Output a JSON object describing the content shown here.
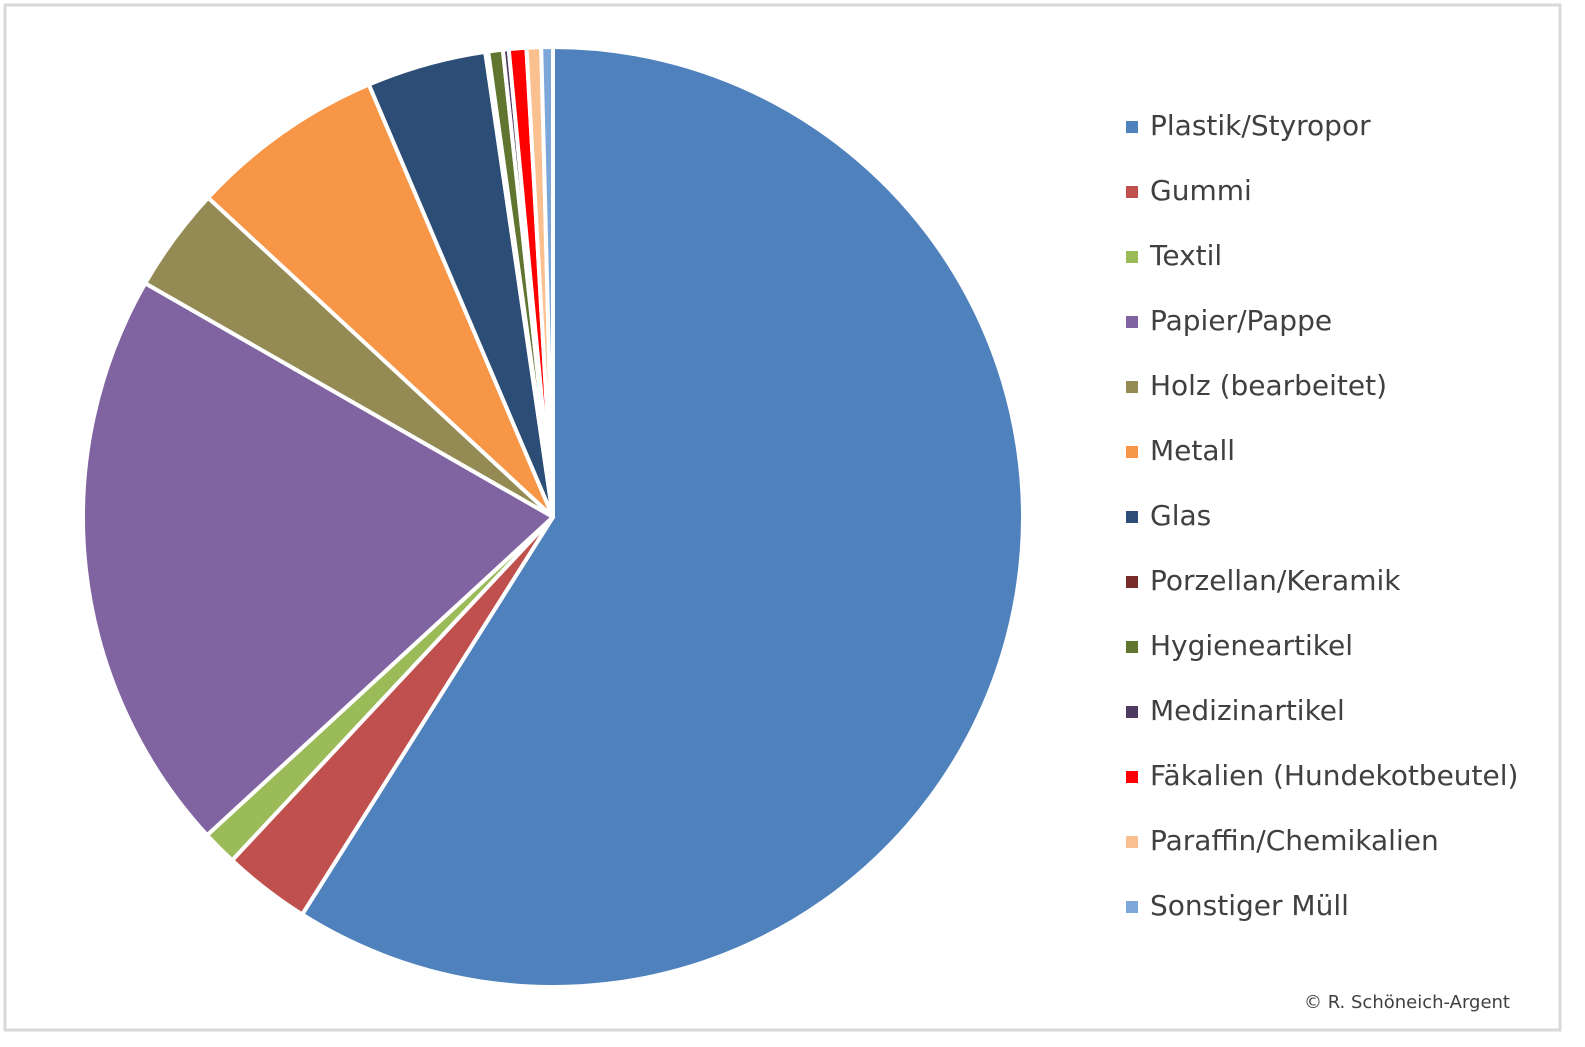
{
  "chart_data": {
    "type": "pie",
    "categories": [
      "Plastik/Styropor",
      "Gummi",
      "Textil",
      "Papier/Pappe",
      "Holz (bearbeitet)",
      "Metall",
      "Glas",
      "Porzellan/Keramik",
      "Hygieneartikel",
      "Medizinartikel",
      "Fäkalien (Hundekotbeutel)",
      "Paraffin/Chemikalien",
      "Sonstiger Müll"
    ],
    "values": [
      58.9,
      3.0,
      1.2,
      20.1,
      3.6,
      6.7,
      4.1,
      0.1,
      0.5,
      0.2,
      0.6,
      0.5,
      0.4
    ],
    "colors": [
      "#4f81bd",
      "#c0504d",
      "#9bbb59",
      "#8064a2",
      "#948a54",
      "#f79646",
      "#2c4d75",
      "#772c2a",
      "#5f7530",
      "#4d3b62",
      "#ff0000",
      "#fac090",
      "#7da7d8"
    ],
    "legend": "right",
    "credit": "© R. Schöneich-Argent"
  }
}
